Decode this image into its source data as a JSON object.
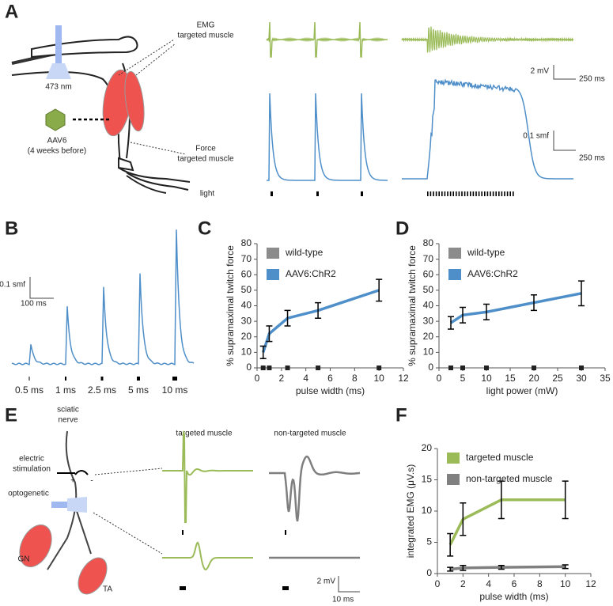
{
  "figure": {
    "panel_letters": [
      "A",
      "B",
      "C",
      "D",
      "E",
      "F"
    ],
    "a": {
      "emg_label": "EMG",
      "emg_sub": "targeted muscle",
      "force_label": "Force",
      "force_sub": "targeted muscle",
      "wavelength": "473 nm",
      "virus": "AAV6",
      "virus_time": "(4 weeks before)",
      "light": "light",
      "emg_scale_v": "2 mV",
      "emg_scale_t": "250 ms",
      "force_scale_v": "0.1 smf",
      "force_scale_t": "250 ms"
    },
    "b": {
      "scale_v": "0.1 smf",
      "scale_t": "100 ms",
      "pulses": [
        "0.5 ms",
        "1 ms",
        "2.5 ms",
        "5 ms",
        "10 ms"
      ]
    },
    "e": {
      "nerve": "sciatic",
      "nerve_sub": "nerve",
      "electric": "electric",
      "electric_sub": "stimulation",
      "plus": "+",
      "minus": "-",
      "optogenetic": "optogenetic",
      "gn": "GN",
      "ta": "TA",
      "targeted": "targeted muscle",
      "non_targeted": "non-targeted muscle",
      "scale_v": "2 mV",
      "scale_t": "10 ms"
    }
  },
  "chart_data": [
    {
      "type": "line",
      "xlabel": "pulse width (ms)",
      "ylabel": "% supramaximal twitch force",
      "x": [
        0.5,
        1,
        2.5,
        5,
        10
      ],
      "xlim": [
        0,
        12
      ],
      "xticks": [
        0,
        2,
        4,
        6,
        8,
        10,
        12
      ],
      "ylim": [
        0,
        80
      ],
      "yticks": [
        0,
        10,
        20,
        30,
        40,
        50,
        60,
        70,
        80
      ],
      "legend": "upper left",
      "series": [
        {
          "name": "wild-type",
          "color": "#8c8c8c",
          "style": "markers",
          "values": [
            0,
            0,
            0,
            0,
            0
          ]
        },
        {
          "name": "AAV6:ChR2",
          "color": "#4f8fc9",
          "style": "line",
          "values": [
            10,
            22,
            32,
            37,
            50
          ],
          "errors": [
            4,
            5,
            5,
            5,
            7
          ]
        }
      ]
    },
    {
      "type": "line",
      "xlabel": "light power (mW)",
      "ylabel": "% supramaximal twitch force",
      "x": [
        2.5,
        5,
        10,
        20,
        30
      ],
      "xlim": [
        0,
        35
      ],
      "xticks": [
        0,
        5,
        10,
        15,
        20,
        25,
        30,
        35
      ],
      "ylim": [
        0,
        80
      ],
      "yticks": [
        0,
        10,
        20,
        30,
        40,
        50,
        60,
        70,
        80
      ],
      "legend": "upper left",
      "series": [
        {
          "name": "wild-type",
          "color": "#8c8c8c",
          "style": "markers",
          "values": [
            0,
            0,
            0,
            0,
            0
          ]
        },
        {
          "name": "AAV6:ChR2",
          "color": "#4f8fc9",
          "style": "line",
          "values": [
            29,
            34,
            36,
            42,
            48
          ],
          "errors": [
            4,
            5,
            5,
            5,
            8
          ]
        }
      ]
    },
    {
      "type": "line",
      "xlabel": "pulse width (ms)",
      "ylabel": "integrated EMG (μV.s)",
      "x": [
        1,
        2,
        5,
        10
      ],
      "xlim": [
        0,
        12
      ],
      "xticks": [
        0,
        2,
        4,
        6,
        8,
        10,
        12
      ],
      "ylim": [
        0,
        20
      ],
      "yticks": [
        0,
        5,
        10,
        15,
        20
      ],
      "legend": "upper left",
      "series": [
        {
          "name": "targeted muscle",
          "color": "#9bbb59",
          "style": "line",
          "values": [
            4.6,
            8.7,
            11.8,
            11.8
          ],
          "errors": [
            1.8,
            2.6,
            3,
            3
          ]
        },
        {
          "name": "non-targeted muscle",
          "color": "#808080",
          "style": "line",
          "values": [
            0.7,
            0.9,
            1.0,
            1.1
          ],
          "errors": [
            0.3,
            0.4,
            0.3,
            0.3
          ]
        }
      ]
    }
  ]
}
